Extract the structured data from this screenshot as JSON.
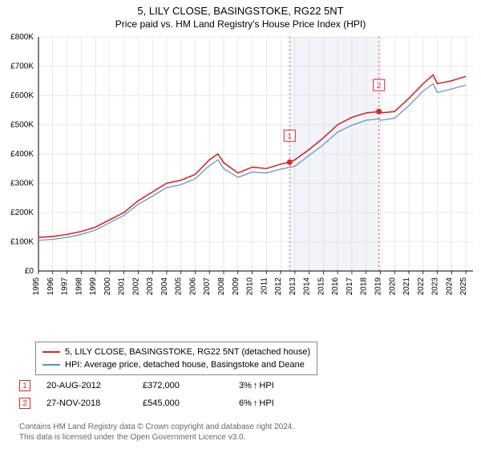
{
  "title": {
    "line1": "5, LILY CLOSE, BASINGSTOKE, RG22 5NT",
    "line2": "Price paid vs. HM Land Registry's House Price Index (HPI)"
  },
  "chart": {
    "type": "line",
    "plot_bg": "#ffffff",
    "shaded_bg": "#f2f4fa",
    "grid_color": "#d0d0d0",
    "axis_color": "#000000",
    "tick_fontsize": 10,
    "xlim": [
      1995,
      2025.5
    ],
    "ylim": [
      0,
      800000
    ],
    "ytick_step": 100000,
    "yticks": [
      "£0",
      "£100K",
      "£200K",
      "£300K",
      "£400K",
      "£500K",
      "£600K",
      "£700K",
      "£800K"
    ],
    "xticks": [
      "1995",
      "1996",
      "1997",
      "1998",
      "1999",
      "2000",
      "2001",
      "2002",
      "2003",
      "2004",
      "2005",
      "2006",
      "2007",
      "2008",
      "2009",
      "2010",
      "2011",
      "2012",
      "2013",
      "2014",
      "2015",
      "2016",
      "2017",
      "2018",
      "2019",
      "2020",
      "2021",
      "2022",
      "2023",
      "2024",
      "2025"
    ],
    "shaded_range": [
      2012.63,
      2018.9
    ],
    "series": [
      {
        "name": "property",
        "label": "5, LILY CLOSE, BASINGSTOKE, RG22 5NT (detached house)",
        "color": "#d62728",
        "width": 1.6,
        "data": [
          [
            1995,
            115000
          ],
          [
            1996,
            118000
          ],
          [
            1997,
            125000
          ],
          [
            1998,
            135000
          ],
          [
            1999,
            150000
          ],
          [
            2000,
            175000
          ],
          [
            2001,
            200000
          ],
          [
            2002,
            240000
          ],
          [
            2003,
            270000
          ],
          [
            2004,
            300000
          ],
          [
            2005,
            310000
          ],
          [
            2006,
            330000
          ],
          [
            2007,
            380000
          ],
          [
            2007.6,
            400000
          ],
          [
            2008,
            370000
          ],
          [
            2009,
            335000
          ],
          [
            2010,
            355000
          ],
          [
            2011,
            350000
          ],
          [
            2012,
            365000
          ],
          [
            2012.63,
            372000
          ],
          [
            2013,
            380000
          ],
          [
            2014,
            415000
          ],
          [
            2015,
            455000
          ],
          [
            2016,
            500000
          ],
          [
            2017,
            525000
          ],
          [
            2018,
            540000
          ],
          [
            2018.9,
            545000
          ],
          [
            2019,
            540000
          ],
          [
            2020,
            545000
          ],
          [
            2021,
            590000
          ],
          [
            2022,
            640000
          ],
          [
            2022.7,
            670000
          ],
          [
            2023,
            640000
          ],
          [
            2024,
            650000
          ],
          [
            2025,
            665000
          ]
        ]
      },
      {
        "name": "hpi",
        "label": "HPI: Average price, detached house, Basingstoke and Deane",
        "color": "#5a8fc7",
        "width": 1.2,
        "data": [
          [
            1995,
            105000
          ],
          [
            1996,
            108000
          ],
          [
            1997,
            115000
          ],
          [
            1998,
            125000
          ],
          [
            1999,
            140000
          ],
          [
            2000,
            165000
          ],
          [
            2001,
            190000
          ],
          [
            2002,
            228000
          ],
          [
            2003,
            256000
          ],
          [
            2004,
            285000
          ],
          [
            2005,
            295000
          ],
          [
            2006,
            315000
          ],
          [
            2007,
            360000
          ],
          [
            2007.6,
            380000
          ],
          [
            2008,
            350000
          ],
          [
            2009,
            320000
          ],
          [
            2010,
            338000
          ],
          [
            2011,
            335000
          ],
          [
            2012,
            348000
          ],
          [
            2013,
            358000
          ],
          [
            2014,
            395000
          ],
          [
            2015,
            432000
          ],
          [
            2016,
            475000
          ],
          [
            2017,
            498000
          ],
          [
            2018,
            515000
          ],
          [
            2018.9,
            520000
          ],
          [
            2019,
            515000
          ],
          [
            2020,
            522000
          ],
          [
            2021,
            565000
          ],
          [
            2022,
            615000
          ],
          [
            2022.7,
            640000
          ],
          [
            2023,
            610000
          ],
          [
            2024,
            622000
          ],
          [
            2025,
            635000
          ]
        ]
      }
    ],
    "sale_markers": [
      {
        "num": "1",
        "x": 2012.63,
        "y": 372000,
        "color": "#d62728",
        "box_y_offset": -40
      },
      {
        "num": "2",
        "x": 2018.9,
        "y": 545000,
        "color": "#d62728",
        "box_y_offset": -40
      }
    ],
    "dotted_line_color": "#d62728"
  },
  "legend": {
    "items": [
      {
        "color": "#d62728",
        "text": "5, LILY CLOSE, BASINGSTOKE, RG22 5NT (detached house)"
      },
      {
        "color": "#5a8fc7",
        "text": "HPI: Average price, detached house, Basingstoke and Deane"
      }
    ]
  },
  "sales": [
    {
      "num": "1",
      "color": "#d62728",
      "date": "20-AUG-2012",
      "price": "£372,000",
      "pct": "3%",
      "arrow": "↑",
      "suffix": "HPI"
    },
    {
      "num": "2",
      "color": "#d62728",
      "date": "27-NOV-2018",
      "price": "£545,000",
      "pct": "6%",
      "arrow": "↑",
      "suffix": "HPI"
    }
  ],
  "footer": {
    "line1": "Contains HM Land Registry data © Crown copyright and database right 2024.",
    "line2": "This data is licensed under the Open Government Licence v3.0."
  }
}
